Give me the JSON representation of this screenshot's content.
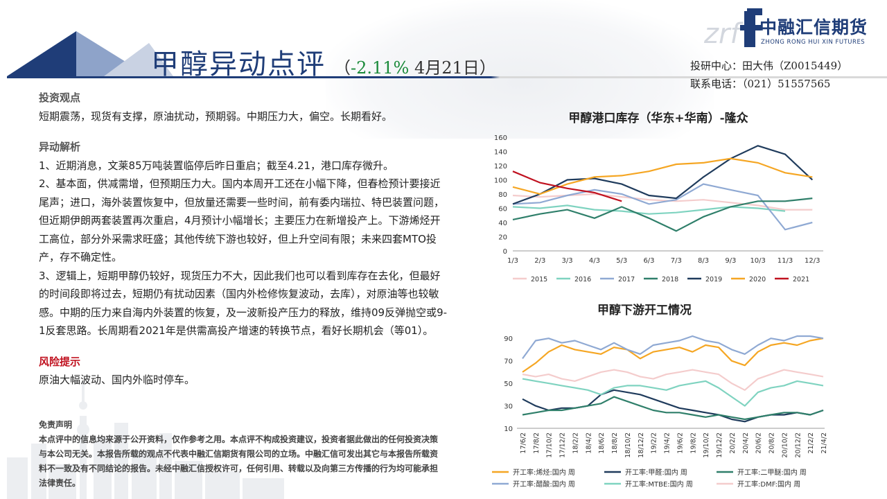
{
  "header": {
    "title_main": "甲醇异动点评",
    "title_open": "（",
    "title_pct": "-2.11%",
    "title_date": " 4月21日）",
    "contact_line1": "投研中心：田大伟（Z0015449）",
    "contact_line2": "联系电话：（021）51557565"
  },
  "logo": {
    "cn": "中融汇信期货",
    "en": "ZHONG RONG HUI XIN FUTURES",
    "mark": "zrf"
  },
  "body": {
    "view_heading": "投资观点",
    "view_text": "短期震荡，现货有支撑，原油扰动，预期弱。中期压力大，偏空。长期看好。",
    "analysis_heading": "异动解析",
    "analysis_1": "1、近期消息，文莱85万吨装置临停后昨日重启；截至4.21，港口库存微升。",
    "analysis_2": "2、基本面，供减需增，但预期压力大。国内本周开工还在小幅下降，但春检预计要接近尾声；进口，海外装置恢复中，但放量还需要一些时间，前有委内瑞拉、特巴装置问题，但近期伊朗两套装置再次重启，4月预计小幅增长；主要压力在新增投产上。下游烯烃开工高位，部分外采需求旺盛；其他传统下游也较好，但上升空间有限；未来四套MTO投产，存不确定性。",
    "analysis_3": "3、逻辑上，短期甲醇仍较好，现货压力不大，因此我们也可以看到库存在去化，但最好的时间段即将过去，短期仍有扰动因素（国内外检修恢复波动，去库），对原油等也较敏感。中期的压力来自海内外装置的恢复，及一波新投产压力的释放，维持09反弹抛空或9-1反套思路。长周期看2021年是供需高投产增速的转换节点，看好长期机会（等01）。",
    "risk_heading": "风险提示",
    "risk_text": "原油大幅波动、国内外临时停车。",
    "disclaimer_heading": "免责声明",
    "disclaimer_text": "本点评中的信息均来源于公开资料，仅作参考之用。本点评不构成投资建议，投资者据此做出的任何投资决策与本公司无关。本报告所载的观点不代表中融汇信期货有限公司的立场。中融汇信可发出其它与本报告所载资料不一致及有不同结论的报告。未经中融汇信授权许可，任何引用、转载以及向第三方传播的行为均可能承担法律责任。"
  },
  "chart_data": [
    {
      "type": "line",
      "title": "甲醇港口库存（华东+华南）-隆众",
      "x": [
        "1/3",
        "2/3",
        "3/3",
        "4/3",
        "5/3",
        "6/3",
        "7/3",
        "8/3",
        "9/3",
        "10/3",
        "11/3",
        "12/3"
      ],
      "ylim": [
        0,
        160
      ],
      "yticks": [
        0,
        20,
        40,
        60,
        80,
        100,
        120,
        140,
        160
      ],
      "legend_position": "bottom",
      "series": [
        {
          "name": "2015",
          "color": "#f4cccc",
          "values": [
            78,
            76,
            78,
            80,
            76,
            72,
            70,
            72,
            68,
            64,
            58,
            58
          ]
        },
        {
          "name": "2016",
          "color": "#7fd3c0",
          "values": [
            62,
            60,
            64,
            58,
            56,
            52,
            54,
            58,
            62,
            60,
            56,
            null
          ]
        },
        {
          "name": "2017",
          "color": "#8fa9d3",
          "values": [
            66,
            68,
            78,
            86,
            80,
            66,
            72,
            94,
            86,
            78,
            30,
            40
          ]
        },
        {
          "name": "2018",
          "color": "#2f7f6a",
          "values": [
            44,
            52,
            58,
            46,
            62,
            46,
            28,
            48,
            62,
            70,
            70,
            74
          ]
        },
        {
          "name": "2019",
          "color": "#1f3b5c",
          "values": [
            66,
            80,
            100,
            102,
            94,
            78,
            74,
            104,
            130,
            148,
            136,
            100
          ]
        },
        {
          "name": "2020",
          "color": "#f5a623",
          "values": [
            90,
            80,
            94,
            104,
            106,
            112,
            122,
            124,
            130,
            124,
            110,
            104
          ]
        },
        {
          "name": "2021",
          "color": "#c0111f",
          "values": [
            112,
            96,
            88,
            82,
            70,
            null,
            null,
            null,
            null,
            null,
            null,
            null
          ]
        }
      ]
    },
    {
      "type": "line",
      "title": "甲醇下游开工情况",
      "x": [
        "17/6/2",
        "17/8/2",
        "17/10/2",
        "17/12/2",
        "18/2/2",
        "18/4/2",
        "18/6/2",
        "18/8/2",
        "18/10/2",
        "18/12/2",
        "19/2/2",
        "19/4/2",
        "19/6/2",
        "19/8/2",
        "19/10/2",
        "19/12/2",
        "20/2/2",
        "20/4/2",
        "20/6/2",
        "20/8/2",
        "20/10/2",
        "20/12/2",
        "21/2/2",
        "21/4/2"
      ],
      "ylim": [
        10,
        100
      ],
      "yticks": [
        10,
        30,
        50,
        70,
        90
      ],
      "legend_position": "bottom",
      "series": [
        {
          "name": "开工率:烯烃:国内 周",
          "color": "#f5a623",
          "values": [
            60,
            68,
            78,
            84,
            80,
            78,
            76,
            82,
            80,
            72,
            78,
            80,
            82,
            78,
            84,
            82,
            70,
            66,
            78,
            84,
            86,
            84,
            88,
            90
          ]
        },
        {
          "name": "开工率:甲醛:国内 周",
          "color": "#1f3b5c",
          "values": [
            36,
            30,
            26,
            28,
            28,
            30,
            40,
            44,
            42,
            40,
            36,
            32,
            28,
            26,
            24,
            22,
            18,
            16,
            20,
            22,
            22,
            24,
            22,
            26
          ]
        },
        {
          "name": "开工率:二甲醚:国内 周",
          "color": "#2f7f6a",
          "values": [
            22,
            24,
            26,
            26,
            28,
            30,
            32,
            38,
            34,
            30,
            26,
            24,
            24,
            22,
            20,
            22,
            20,
            18,
            20,
            22,
            24,
            24,
            22,
            26
          ]
        },
        {
          "name": "开工率:醋酸:国内 周",
          "color": "#8fa9d3",
          "values": [
            72,
            88,
            90,
            86,
            88,
            84,
            80,
            86,
            80,
            76,
            84,
            86,
            88,
            92,
            88,
            86,
            80,
            76,
            84,
            90,
            88,
            92,
            92,
            90
          ]
        },
        {
          "name": "开工率:MTBE:国内 周",
          "color": "#7fd3c0",
          "values": [
            54,
            52,
            50,
            48,
            46,
            44,
            40,
            46,
            48,
            48,
            46,
            44,
            48,
            50,
            52,
            46,
            38,
            30,
            42,
            46,
            48,
            52,
            50,
            48
          ]
        },
        {
          "name": "开工率:DMF:国内 周",
          "color": "#f4cccc",
          "values": [
            58,
            56,
            58,
            54,
            52,
            56,
            60,
            62,
            60,
            56,
            54,
            58,
            60,
            62,
            60,
            58,
            50,
            44,
            54,
            58,
            62,
            60,
            58,
            56
          ]
        }
      ]
    }
  ]
}
